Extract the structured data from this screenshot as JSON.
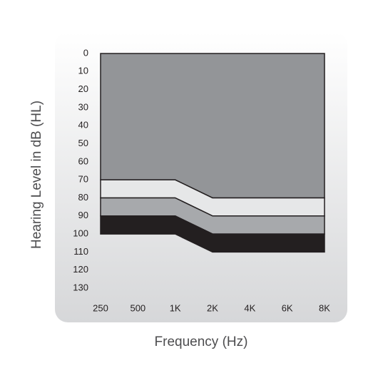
{
  "chart_data": {
    "type": "stacked-area",
    "y_label": "Hearing Level in dB (HL)",
    "x_label": "Frequency (Hz)",
    "categories": [
      "250",
      "500",
      "1K",
      "2K",
      "4K",
      "6K",
      "8K"
    ],
    "series": [
      {
        "color": "#939598",
        "values": [
          70,
          70,
          70,
          80,
          80,
          80,
          80
        ]
      },
      {
        "color": "#e6e7e8",
        "values": [
          10,
          10,
          10,
          10,
          10,
          10,
          10
        ]
      },
      {
        "color": "#a7a9ac",
        "values": [
          10,
          10,
          10,
          10,
          10,
          10,
          10
        ]
      },
      {
        "color": "#231f20",
        "values": [
          10,
          10,
          10,
          10,
          10,
          10,
          10
        ]
      }
    ],
    "ylim": [
      0,
      130
    ],
    "yticks": [
      0,
      10,
      20,
      30,
      40,
      50,
      60,
      70,
      80,
      90,
      100,
      110,
      120,
      130
    ],
    "y_inverted": true
  }
}
